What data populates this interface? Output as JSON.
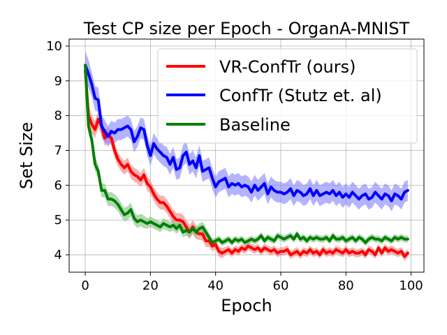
{
  "chart_data": {
    "type": "line",
    "title": "Test CP size per Epoch - OrganA-MNIST",
    "xlabel": "Epoch",
    "ylabel": "Set Size",
    "xlim": [
      -4.95,
      103.95
    ],
    "ylim": [
      3.5,
      10.2
    ],
    "xticks": [
      0,
      20,
      40,
      60,
      80,
      100
    ],
    "yticks": [
      4,
      5,
      6,
      7,
      8,
      9,
      10
    ],
    "grid": true,
    "legend_position": "top-right",
    "series": [
      {
        "name": "VR-ConfTr (ours)",
        "color": "#ff0000",
        "band_color": "#f08080",
        "values": [
          9.3,
          8.0,
          7.75,
          7.6,
          7.9,
          7.7,
          7.35,
          7.45,
          7.35,
          7.0,
          6.75,
          6.6,
          6.5,
          6.6,
          6.4,
          6.3,
          6.25,
          6.15,
          6.3,
          6.05,
          5.95,
          5.75,
          5.6,
          5.5,
          5.5,
          5.4,
          5.25,
          5.1,
          5.0,
          5.0,
          4.95,
          4.8,
          4.65,
          4.8,
          4.65,
          4.6,
          4.6,
          4.4,
          4.4,
          4.25,
          4.3,
          4.1,
          4.05,
          4.1,
          4.15,
          4.05,
          4.15,
          4.1,
          4.2,
          4.15,
          4.25,
          4.2,
          4.15,
          4.2,
          4.1,
          4.2,
          4.15,
          4.1,
          4.15,
          4.05,
          4.1,
          4.1,
          4.15,
          4.0,
          4.05,
          4.1,
          4.0,
          4.1,
          4.05,
          4.15,
          4.05,
          4.1,
          4.0,
          4.15,
          4.05,
          4.1,
          4.05,
          4.15,
          4.1,
          4.05,
          4.15,
          4.05,
          4.1,
          4.05,
          4.05,
          4.1,
          4.0,
          4.15,
          4.1,
          4.0,
          4.2,
          4.05,
          4.2,
          4.1,
          4.15,
          4.1,
          4.05,
          4.1,
          3.95,
          4.05
        ],
        "band": [
          0.28,
          0.28,
          0.25,
          0.25,
          0.25,
          0.25,
          0.22,
          0.22,
          0.22,
          0.22,
          0.2,
          0.2,
          0.2,
          0.2,
          0.2,
          0.2,
          0.2,
          0.2,
          0.2,
          0.2,
          0.2,
          0.2,
          0.2,
          0.2,
          0.2,
          0.2,
          0.2,
          0.2,
          0.2,
          0.2,
          0.2,
          0.2,
          0.2,
          0.2,
          0.2,
          0.18,
          0.18,
          0.18,
          0.18,
          0.15,
          0.15,
          0.15,
          0.15,
          0.12,
          0.12,
          0.12,
          0.12,
          0.12,
          0.12,
          0.12,
          0.12,
          0.12,
          0.12,
          0.12,
          0.12,
          0.12,
          0.12,
          0.12,
          0.12,
          0.12,
          0.12,
          0.12,
          0.12,
          0.12,
          0.12,
          0.12,
          0.12,
          0.12,
          0.12,
          0.12,
          0.12,
          0.12,
          0.12,
          0.12,
          0.12,
          0.12,
          0.12,
          0.12,
          0.12,
          0.12,
          0.12,
          0.12,
          0.12,
          0.12,
          0.12,
          0.12,
          0.12,
          0.12,
          0.12,
          0.12,
          0.12,
          0.12,
          0.12,
          0.12,
          0.12,
          0.12,
          0.12,
          0.12,
          0.12,
          0.12
        ]
      },
      {
        "name": "ConfTr (Stutz et. al)",
        "color": "#0000ff",
        "band_color": "#8080ff",
        "values": [
          9.45,
          9.2,
          8.9,
          8.5,
          8.45,
          7.7,
          7.55,
          7.4,
          7.55,
          7.5,
          7.6,
          7.6,
          7.65,
          7.7,
          7.6,
          7.25,
          7.4,
          7.65,
          7.6,
          7.15,
          6.85,
          7.2,
          7.05,
          6.95,
          6.85,
          6.8,
          6.6,
          6.8,
          6.45,
          6.5,
          6.85,
          6.95,
          6.6,
          6.7,
          6.5,
          6.85,
          6.4,
          6.45,
          6.5,
          6.2,
          5.95,
          6.1,
          6.15,
          6.2,
          5.95,
          6.05,
          6.0,
          6.05,
          5.95,
          6.0,
          5.95,
          5.8,
          6.0,
          5.85,
          5.95,
          6.05,
          5.75,
          5.95,
          5.85,
          5.8,
          5.8,
          5.75,
          5.8,
          5.9,
          5.7,
          5.85,
          5.8,
          5.7,
          5.75,
          5.9,
          5.7,
          5.85,
          5.7,
          5.75,
          5.8,
          5.75,
          5.85,
          5.7,
          5.8,
          5.65,
          5.75,
          5.65,
          5.8,
          5.7,
          5.6,
          5.7,
          5.75,
          5.6,
          5.65,
          5.8,
          5.7,
          5.6,
          5.75,
          5.7,
          5.55,
          5.75,
          5.7,
          5.6,
          5.8,
          5.85
        ],
        "band": [
          0.4,
          0.4,
          0.35,
          0.35,
          0.35,
          0.32,
          0.32,
          0.3,
          0.3,
          0.3,
          0.3,
          0.3,
          0.3,
          0.3,
          0.3,
          0.3,
          0.3,
          0.3,
          0.3,
          0.3,
          0.3,
          0.3,
          0.3,
          0.3,
          0.3,
          0.3,
          0.3,
          0.3,
          0.3,
          0.3,
          0.3,
          0.3,
          0.3,
          0.3,
          0.3,
          0.3,
          0.3,
          0.3,
          0.3,
          0.3,
          0.3,
          0.3,
          0.3,
          0.3,
          0.3,
          0.3,
          0.3,
          0.3,
          0.3,
          0.3,
          0.3,
          0.3,
          0.3,
          0.3,
          0.3,
          0.3,
          0.3,
          0.3,
          0.3,
          0.3,
          0.3,
          0.3,
          0.3,
          0.3,
          0.3,
          0.3,
          0.3,
          0.3,
          0.3,
          0.3,
          0.3,
          0.3,
          0.3,
          0.3,
          0.3,
          0.3,
          0.3,
          0.3,
          0.3,
          0.3,
          0.3,
          0.3,
          0.3,
          0.3,
          0.3,
          0.3,
          0.3,
          0.3,
          0.3,
          0.3,
          0.3,
          0.3,
          0.3,
          0.3,
          0.3,
          0.3,
          0.3,
          0.3,
          0.3,
          0.3
        ]
      },
      {
        "name": "Baseline",
        "color": "#008000",
        "band_color": "#80c080",
        "values": [
          9.45,
          7.7,
          7.3,
          6.6,
          6.4,
          5.85,
          5.85,
          5.6,
          5.6,
          5.55,
          5.45,
          5.3,
          5.15,
          5.2,
          5.3,
          5.05,
          4.95,
          5.0,
          4.95,
          4.9,
          4.95,
          4.9,
          4.85,
          4.8,
          4.9,
          4.85,
          4.8,
          4.85,
          4.75,
          4.85,
          4.65,
          4.7,
          4.65,
          4.75,
          4.65,
          4.75,
          4.8,
          4.65,
          4.5,
          4.35,
          4.4,
          4.45,
          4.35,
          4.4,
          4.45,
          4.35,
          4.45,
          4.4,
          4.45,
          4.35,
          4.4,
          4.45,
          4.4,
          4.45,
          4.55,
          4.4,
          4.5,
          4.45,
          4.4,
          4.55,
          4.5,
          4.45,
          4.5,
          4.55,
          4.45,
          4.6,
          4.45,
          4.5,
          4.4,
          4.5,
          4.45,
          4.5,
          4.45,
          4.45,
          4.5,
          4.4,
          4.55,
          4.45,
          4.45,
          4.5,
          4.4,
          4.45,
          4.5,
          4.4,
          4.5,
          4.45,
          4.35,
          4.45,
          4.5,
          4.45,
          4.45,
          4.4,
          4.5,
          4.45,
          4.4,
          4.5,
          4.45,
          4.5,
          4.45,
          4.45
        ],
        "band": [
          0.2,
          0.2,
          0.2,
          0.2,
          0.2,
          0.2,
          0.2,
          0.2,
          0.2,
          0.2,
          0.2,
          0.2,
          0.2,
          0.2,
          0.2,
          0.18,
          0.18,
          0.18,
          0.18,
          0.15,
          0.15,
          0.15,
          0.15,
          0.15,
          0.15,
          0.15,
          0.15,
          0.15,
          0.15,
          0.15,
          0.15,
          0.15,
          0.15,
          0.15,
          0.15,
          0.15,
          0.15,
          0.15,
          0.12,
          0.12,
          0.1,
          0.1,
          0.1,
          0.1,
          0.1,
          0.1,
          0.1,
          0.1,
          0.1,
          0.1,
          0.1,
          0.1,
          0.1,
          0.1,
          0.1,
          0.1,
          0.1,
          0.1,
          0.1,
          0.1,
          0.1,
          0.1,
          0.1,
          0.1,
          0.1,
          0.1,
          0.1,
          0.1,
          0.1,
          0.1,
          0.1,
          0.1,
          0.1,
          0.1,
          0.1,
          0.1,
          0.1,
          0.1,
          0.1,
          0.1,
          0.1,
          0.1,
          0.1,
          0.1,
          0.1,
          0.1,
          0.1,
          0.1,
          0.1,
          0.1,
          0.1,
          0.1,
          0.1,
          0.1,
          0.1,
          0.1,
          0.1,
          0.1,
          0.1,
          0.1
        ]
      }
    ]
  }
}
